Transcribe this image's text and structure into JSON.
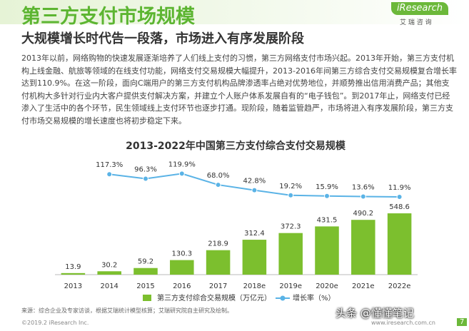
{
  "header": {
    "title": "第三方支付市场规模",
    "logo": "iResearch",
    "logo_sub": "艾 瑞 咨 询"
  },
  "subtitle": "大规模增长时代告一段落，市场进入有序发展阶段",
  "paragraph": "2013年以前，网络购物的快速发展逐渐培养了人们线上支付的习惯，第三方网络支付市场兴起。2013年开始，第三方支付机构上线金融、航旅等领域的在线支付功能，网络支付交易规模大幅提升，2013-2016年间第三方综合支付交易规模复合增长率达到110.9%。在这一阶段，面向C端用户的第三方支付机构品牌渗透率占绝对优势地位，并顺势推出信用消费产品；其他支付机构大多针对行业内大客户提供支付解决方案，并建立个人账户体系发展自有的“电子钱包”。到2017年止，网络支付已经渗入了生活中的各个环节，民生领域线上支付环节也逐步打通。现阶段，随着监管趋严，市场将进入有序发展阶段，第三方支付市场交易规模的增长速度也将初步稳定下来。",
  "chart_data": {
    "type": "bar",
    "title": "2013-2022年中国第三方支付综合支付交易规模",
    "categories": [
      "2013",
      "2014",
      "2015",
      "2016",
      "2017",
      "2018e",
      "2019e",
      "2020e",
      "2021e",
      "2022e"
    ],
    "series": [
      {
        "name": "第三方支付综合交易规模（万亿元）",
        "type": "bar",
        "color": "#7cbf2e",
        "values": [
          13.9,
          30.2,
          59.2,
          130.3,
          218.9,
          312.4,
          372.3,
          431.5,
          490.2,
          548.6
        ]
      },
      {
        "name": "增长率（%）",
        "type": "line",
        "axis": "y2",
        "color": "#5ab3e6",
        "values": [
          null,
          117.3,
          96.3,
          119.9,
          68.0,
          42.8,
          19.2,
          15.9,
          13.6,
          11.9
        ],
        "value_labels": [
          null,
          "117.3%",
          "96.3%",
          "119.9%",
          "68.0%",
          "42.8%",
          "19.2%",
          "15.9%",
          "13.6%",
          "11.9%"
        ]
      }
    ],
    "ylim": [
      0,
      1500
    ],
    "y2lim": [
      -350,
      430
    ]
  },
  "source": "来源：综合企业及专家访谈，根据艾瑞统计模型核算；艾瑞研究院自主研究及绘制。",
  "footer": {
    "copyright": "©2019.2 iResearch Inc.",
    "website": "www.iresearch.com.cn",
    "page": "7",
    "watermark": "头条 @懂懂笔记"
  }
}
